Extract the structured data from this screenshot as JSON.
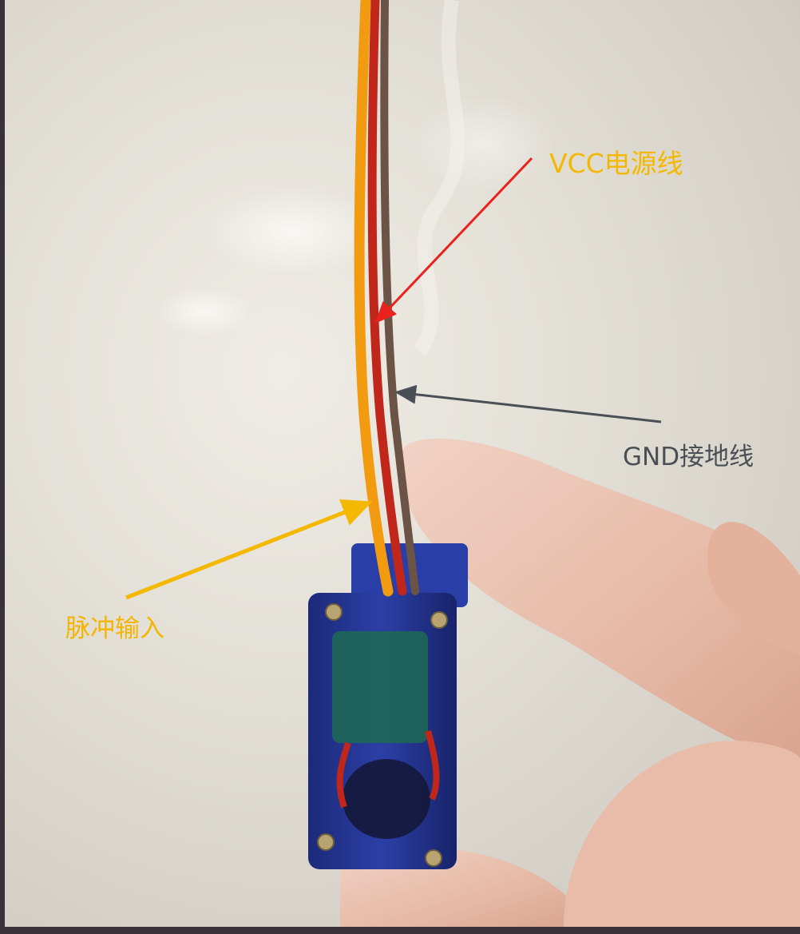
{
  "annotations": {
    "vcc": {
      "text": "VCC电源线",
      "color": "#f5b800"
    },
    "gnd": {
      "text": "GND接地线",
      "color": "#4a4f55"
    },
    "pulse": {
      "text": "脉冲输入",
      "color": "#f5b400"
    }
  },
  "arrows": {
    "vcc": {
      "color": "#e8231d"
    },
    "gnd": {
      "color": "#4a4f55"
    },
    "pulse": {
      "color": "#f5b800"
    }
  },
  "wires": [
    {
      "name": "signal",
      "color": "#f29a10"
    },
    {
      "name": "power",
      "color": "#c0271a"
    },
    {
      "name": "ground",
      "color": "#6b5346"
    }
  ]
}
